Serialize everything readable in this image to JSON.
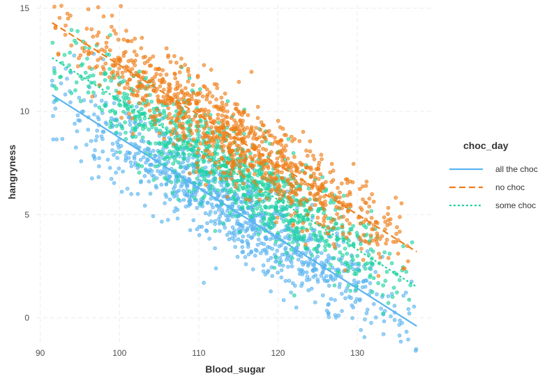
{
  "chart_data": {
    "type": "scatter",
    "xlabel": "Blood_sugar",
    "ylabel": "hangryness",
    "xlim": [
      89.5,
      139.5
    ],
    "ylim": [
      -1.2,
      15.2
    ],
    "x_ticks": [
      90,
      100,
      110,
      120,
      130
    ],
    "y_ticks": [
      0,
      5,
      10,
      15
    ],
    "grid": true,
    "legend": {
      "title": "choc_day",
      "placement": "right",
      "entries": [
        {
          "label": "all the choc",
          "color": "#5ab4f0",
          "linestyle": "solid"
        },
        {
          "label": "no choc",
          "color": "#ef7e18",
          "linestyle": "dashed"
        },
        {
          "label": "some choc",
          "color": "#1fd4a0",
          "linestyle": "dotted"
        }
      ]
    },
    "series": [
      {
        "name": "all the choc",
        "color": "#5ab4f0",
        "n_points": 1000,
        "fit_line": {
          "x": [
            91.5,
            137.5
          ],
          "y": [
            10.8,
            -0.4
          ]
        },
        "x_range": [
          91.5,
          137.5
        ],
        "residual_sd": 1.1
      },
      {
        "name": "no choc",
        "color": "#ef7e18",
        "n_points": 1000,
        "fit_line": {
          "x": [
            91.5,
            137.5
          ],
          "y": [
            14.3,
            3.2
          ]
        },
        "x_range": [
          91.5,
          136.5
        ],
        "residual_sd": 1.1
      },
      {
        "name": "some choc",
        "color": "#1fd4a0",
        "n_points": 1000,
        "fit_line": {
          "x": [
            91.5,
            137.5
          ],
          "y": [
            12.6,
            1.5
          ]
        },
        "x_range": [
          91.5,
          137.0
        ],
        "residual_sd": 1.1
      }
    ]
  }
}
